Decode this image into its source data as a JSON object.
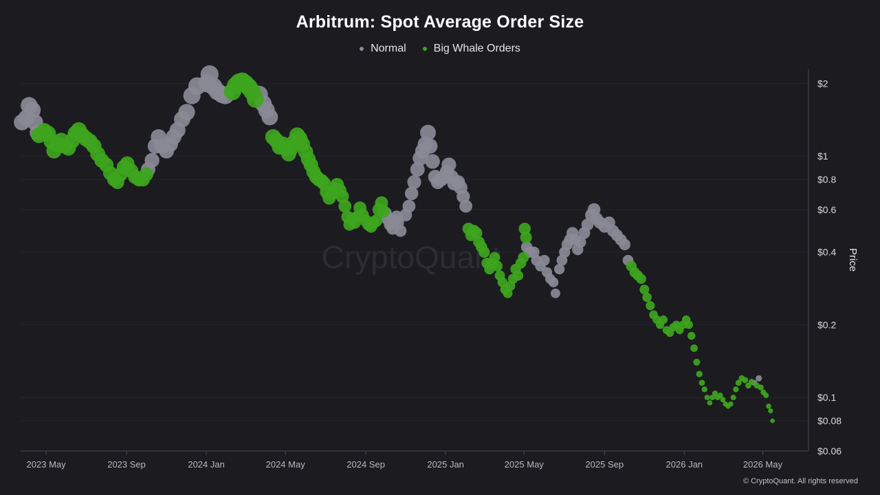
{
  "chart_data": {
    "type": "scatter",
    "title": "Arbitrum: Spot Average Order Size",
    "ylabel": "Price",
    "y_scale": "log",
    "ylim": [
      0.06,
      2.3
    ],
    "y_ticks": [
      {
        "value": 2,
        "label": "$2"
      },
      {
        "value": 1,
        "label": "$1"
      },
      {
        "value": 0.8,
        "label": "$0.8"
      },
      {
        "value": 0.6,
        "label": "$0.6"
      },
      {
        "value": 0.4,
        "label": "$0.4"
      },
      {
        "value": 0.2,
        "label": "$0.2"
      },
      {
        "value": 0.1,
        "label": "$0.1"
      },
      {
        "value": 0.08,
        "label": "$0.08"
      },
      {
        "value": 0.06,
        "label": "$0.06"
      }
    ],
    "xlim": [
      "2023-03-23",
      "2026-07-10"
    ],
    "x_ticks": [
      {
        "date": "2023-05-01",
        "label": "2023 May"
      },
      {
        "date": "2023-09-01",
        "label": "2023 Sep"
      },
      {
        "date": "2024-01-01",
        "label": "2024 Jan"
      },
      {
        "date": "2024-05-01",
        "label": "2024 May"
      },
      {
        "date": "2024-09-01",
        "label": "2024 Sep"
      },
      {
        "date": "2025-01-01",
        "label": "2025 Jan"
      },
      {
        "date": "2025-05-01",
        "label": "2025 May"
      },
      {
        "date": "2025-09-01",
        "label": "2025 Sep"
      },
      {
        "date": "2026-01-01",
        "label": "2026 Jan"
      },
      {
        "date": "2026-05-01",
        "label": "2026 May"
      }
    ],
    "legend_position": "top-center",
    "series": [
      {
        "name": "Normal",
        "color": "#8a8a97",
        "points": [
          [
            "2023-03-25",
            1.38
          ],
          [
            "2023-04-01",
            1.44
          ],
          [
            "2023-04-05",
            1.62
          ],
          [
            "2023-04-10",
            1.55
          ],
          [
            "2023-04-14",
            1.38
          ],
          [
            "2023-04-18",
            1.25
          ],
          [
            "2023-10-04",
            0.88
          ],
          [
            "2023-10-10",
            0.96
          ],
          [
            "2023-10-15",
            1.1
          ],
          [
            "2023-10-20",
            1.2
          ],
          [
            "2023-10-25",
            1.1
          ],
          [
            "2023-11-01",
            1.05
          ],
          [
            "2023-11-07",
            1.12
          ],
          [
            "2023-11-12",
            1.2
          ],
          [
            "2023-11-18",
            1.28
          ],
          [
            "2023-11-25",
            1.42
          ],
          [
            "2023-12-02",
            1.52
          ],
          [
            "2023-12-10",
            1.78
          ],
          [
            "2023-12-18",
            1.95
          ],
          [
            "2024-01-02",
            2.0
          ],
          [
            "2024-01-06",
            2.18
          ],
          [
            "2024-01-12",
            1.94
          ],
          [
            "2024-01-18",
            1.85
          ],
          [
            "2024-01-25",
            1.8
          ],
          [
            "2024-01-30",
            1.78
          ],
          [
            "2024-03-22",
            1.8
          ],
          [
            "2024-03-28",
            1.65
          ],
          [
            "2024-04-02",
            1.55
          ],
          [
            "2024-04-07",
            1.45
          ],
          [
            "2024-10-01",
            0.58
          ],
          [
            "2024-10-04",
            0.55
          ],
          [
            "2024-10-08",
            0.52
          ],
          [
            "2024-10-12",
            0.5
          ],
          [
            "2024-10-15",
            0.54
          ],
          [
            "2024-10-18",
            0.56
          ],
          [
            "2024-10-20",
            0.53
          ],
          [
            "2024-10-24",
            0.49
          ],
          [
            "2024-11-01",
            0.57
          ],
          [
            "2024-11-06",
            0.62
          ],
          [
            "2024-11-10",
            0.7
          ],
          [
            "2024-11-14",
            0.78
          ],
          [
            "2024-11-19",
            0.88
          ],
          [
            "2024-11-23",
            0.98
          ],
          [
            "2024-11-27",
            1.05
          ],
          [
            "2024-12-01",
            1.12
          ],
          [
            "2024-12-05",
            1.25
          ],
          [
            "2024-12-08",
            1.1
          ],
          [
            "2024-12-12",
            0.95
          ],
          [
            "2024-12-16",
            0.82
          ],
          [
            "2024-12-20",
            0.78
          ],
          [
            "2024-12-25",
            0.8
          ],
          [
            "2024-12-30",
            0.82
          ],
          [
            "2025-01-03",
            0.86
          ],
          [
            "2025-01-06",
            0.92
          ],
          [
            "2025-01-10",
            0.82
          ],
          [
            "2025-01-14",
            0.77
          ],
          [
            "2025-01-20",
            0.78
          ],
          [
            "2025-01-24",
            0.74
          ],
          [
            "2025-01-28",
            0.68
          ],
          [
            "2025-02-01",
            0.62
          ],
          [
            "2025-05-05",
            0.42
          ],
          [
            "2025-05-10",
            0.4
          ],
          [
            "2025-05-16",
            0.4
          ],
          [
            "2025-05-20",
            0.37
          ],
          [
            "2025-05-26",
            0.35
          ],
          [
            "2025-06-01",
            0.37
          ],
          [
            "2025-06-05",
            0.33
          ],
          [
            "2025-06-10",
            0.31
          ],
          [
            "2025-06-15",
            0.3
          ],
          [
            "2025-06-18",
            0.27
          ],
          [
            "2025-06-24",
            0.34
          ],
          [
            "2025-06-28",
            0.37
          ],
          [
            "2025-07-02",
            0.4
          ],
          [
            "2025-07-06",
            0.43
          ],
          [
            "2025-07-10",
            0.45
          ],
          [
            "2025-07-14",
            0.48
          ],
          [
            "2025-07-18",
            0.45
          ],
          [
            "2025-07-22",
            0.41
          ],
          [
            "2025-07-26",
            0.44
          ],
          [
            "2025-08-01",
            0.48
          ],
          [
            "2025-08-06",
            0.52
          ],
          [
            "2025-08-12",
            0.57
          ],
          [
            "2025-08-16",
            0.6
          ],
          [
            "2025-08-20",
            0.55
          ],
          [
            "2025-08-25",
            0.53
          ],
          [
            "2025-09-01",
            0.51
          ],
          [
            "2025-09-08",
            0.53
          ],
          [
            "2025-09-14",
            0.49
          ],
          [
            "2025-09-20",
            0.47
          ],
          [
            "2025-09-26",
            0.45
          ],
          [
            "2025-10-02",
            0.43
          ],
          [
            "2025-10-07",
            0.37
          ],
          [
            "2026-04-18",
            0.115
          ],
          [
            "2026-04-25",
            0.12
          ]
        ]
      },
      {
        "name": "Big Whale Orders",
        "color": "#3ea51e",
        "points": [
          [
            "2023-04-20",
            1.22
          ],
          [
            "2023-04-28",
            1.27
          ],
          [
            "2023-05-04",
            1.24
          ],
          [
            "2023-05-09",
            1.15
          ],
          [
            "2023-05-13",
            1.05
          ],
          [
            "2023-05-18",
            1.12
          ],
          [
            "2023-05-24",
            1.16
          ],
          [
            "2023-05-30",
            1.1
          ],
          [
            "2023-06-04",
            1.08
          ],
          [
            "2023-06-10",
            1.16
          ],
          [
            "2023-06-15",
            1.24
          ],
          [
            "2023-06-20",
            1.28
          ],
          [
            "2023-06-25",
            1.22
          ],
          [
            "2023-07-01",
            1.18
          ],
          [
            "2023-07-07",
            1.15
          ],
          [
            "2023-07-13",
            1.1
          ],
          [
            "2023-07-19",
            1.02
          ],
          [
            "2023-07-25",
            0.96
          ],
          [
            "2023-08-01",
            0.92
          ],
          [
            "2023-08-07",
            0.85
          ],
          [
            "2023-08-13",
            0.8
          ],
          [
            "2023-08-18",
            0.78
          ],
          [
            "2023-08-23",
            0.84
          ],
          [
            "2023-08-28",
            0.9
          ],
          [
            "2023-09-02",
            0.93
          ],
          [
            "2023-09-08",
            0.87
          ],
          [
            "2023-09-14",
            0.82
          ],
          [
            "2023-09-20",
            0.8
          ],
          [
            "2023-09-26",
            0.8
          ],
          [
            "2023-10-01",
            0.84
          ],
          [
            "2024-02-10",
            1.85
          ],
          [
            "2024-02-15",
            1.96
          ],
          [
            "2024-02-20",
            2.02
          ],
          [
            "2024-02-25",
            2.04
          ],
          [
            "2024-03-01",
            1.99
          ],
          [
            "2024-03-06",
            1.93
          ],
          [
            "2024-03-11",
            1.85
          ],
          [
            "2024-03-16",
            1.72
          ],
          [
            "2024-04-12",
            1.2
          ],
          [
            "2024-04-17",
            1.16
          ],
          [
            "2024-04-22",
            1.09
          ],
          [
            "2024-04-27",
            1.12
          ],
          [
            "2024-05-02",
            1.07
          ],
          [
            "2024-05-06",
            1.02
          ],
          [
            "2024-05-10",
            1.08
          ],
          [
            "2024-05-14",
            1.14
          ],
          [
            "2024-05-19",
            1.22
          ],
          [
            "2024-05-23",
            1.18
          ],
          [
            "2024-05-27",
            1.12
          ],
          [
            "2024-06-01",
            1.04
          ],
          [
            "2024-06-05",
            0.97
          ],
          [
            "2024-06-09",
            0.92
          ],
          [
            "2024-06-13",
            0.86
          ],
          [
            "2024-06-17",
            0.82
          ],
          [
            "2024-06-21",
            0.8
          ],
          [
            "2024-06-25",
            0.79
          ],
          [
            "2024-06-29",
            0.77
          ],
          [
            "2024-07-03",
            0.71
          ],
          [
            "2024-07-07",
            0.67
          ],
          [
            "2024-07-11",
            0.7
          ],
          [
            "2024-07-15",
            0.73
          ],
          [
            "2024-07-19",
            0.76
          ],
          [
            "2024-07-23",
            0.72
          ],
          [
            "2024-07-27",
            0.68
          ],
          [
            "2024-07-31",
            0.62
          ],
          [
            "2024-08-04",
            0.56
          ],
          [
            "2024-08-07",
            0.52
          ],
          [
            "2024-08-11",
            0.55
          ],
          [
            "2024-08-15",
            0.53
          ],
          [
            "2024-08-19",
            0.56
          ],
          [
            "2024-08-23",
            0.61
          ],
          [
            "2024-08-27",
            0.57
          ],
          [
            "2024-09-01",
            0.54
          ],
          [
            "2024-09-05",
            0.52
          ],
          [
            "2024-09-09",
            0.51
          ],
          [
            "2024-09-13",
            0.53
          ],
          [
            "2024-09-17",
            0.54
          ],
          [
            "2024-09-21",
            0.6
          ],
          [
            "2024-09-25",
            0.64
          ],
          [
            "2024-09-28",
            0.59
          ],
          [
            "2025-02-05",
            0.5
          ],
          [
            "2025-02-09",
            0.47
          ],
          [
            "2025-02-13",
            0.49
          ],
          [
            "2025-02-17",
            0.48
          ],
          [
            "2025-02-21",
            0.44
          ],
          [
            "2025-02-25",
            0.42
          ],
          [
            "2025-03-01",
            0.4
          ],
          [
            "2025-03-05",
            0.36
          ],
          [
            "2025-03-09",
            0.34
          ],
          [
            "2025-03-13",
            0.36
          ],
          [
            "2025-03-17",
            0.38
          ],
          [
            "2025-03-21",
            0.35
          ],
          [
            "2025-03-25",
            0.32
          ],
          [
            "2025-03-29",
            0.3
          ],
          [
            "2025-04-02",
            0.28
          ],
          [
            "2025-04-06",
            0.27
          ],
          [
            "2025-04-10",
            0.29
          ],
          [
            "2025-04-14",
            0.31
          ],
          [
            "2025-04-18",
            0.34
          ],
          [
            "2025-04-22",
            0.32
          ],
          [
            "2025-04-26",
            0.36
          ],
          [
            "2025-04-30",
            0.38
          ],
          [
            "2025-05-02",
            0.5
          ],
          [
            "2025-05-04",
            0.46
          ],
          [
            "2025-10-12",
            0.35
          ],
          [
            "2025-10-17",
            0.33
          ],
          [
            "2025-10-22",
            0.32
          ],
          [
            "2025-10-27",
            0.31
          ],
          [
            "2025-11-01",
            0.28
          ],
          [
            "2025-11-05",
            0.26
          ],
          [
            "2025-11-10",
            0.24
          ],
          [
            "2025-11-15",
            0.22
          ],
          [
            "2025-11-20",
            0.21
          ],
          [
            "2025-11-25",
            0.2
          ],
          [
            "2025-11-30",
            0.21
          ],
          [
            "2025-12-05",
            0.19
          ],
          [
            "2025-12-10",
            0.185
          ],
          [
            "2025-12-15",
            0.195
          ],
          [
            "2025-12-20",
            0.2
          ],
          [
            "2025-12-25",
            0.19
          ],
          [
            "2025-12-30",
            0.2
          ],
          [
            "2026-01-04",
            0.21
          ],
          [
            "2026-01-08",
            0.2
          ],
          [
            "2026-01-12",
            0.18
          ],
          [
            "2026-01-16",
            0.16
          ],
          [
            "2026-01-20",
            0.14
          ],
          [
            "2026-01-24",
            0.125
          ],
          [
            "2026-01-28",
            0.115
          ],
          [
            "2026-02-01",
            0.108
          ],
          [
            "2026-02-05",
            0.1
          ],
          [
            "2026-02-09",
            0.095
          ],
          [
            "2026-02-13",
            0.1
          ],
          [
            "2026-02-17",
            0.104
          ],
          [
            "2026-02-21",
            0.1
          ],
          [
            "2026-02-25",
            0.102
          ],
          [
            "2026-03-01",
            0.098
          ],
          [
            "2026-03-05",
            0.094
          ],
          [
            "2026-03-09",
            0.092
          ],
          [
            "2026-03-13",
            0.094
          ],
          [
            "2026-03-17",
            0.1
          ],
          [
            "2026-03-21",
            0.108
          ],
          [
            "2026-03-25",
            0.115
          ],
          [
            "2026-03-30",
            0.12
          ],
          [
            "2026-04-04",
            0.118
          ],
          [
            "2026-04-09",
            0.112
          ],
          [
            "2026-04-14",
            0.116
          ],
          [
            "2026-04-22",
            0.112
          ],
          [
            "2026-04-28",
            0.11
          ],
          [
            "2026-05-02",
            0.105
          ],
          [
            "2026-05-06",
            0.102
          ],
          [
            "2026-05-10",
            0.092
          ],
          [
            "2026-05-13",
            0.088
          ],
          [
            "2026-05-16",
            0.08
          ]
        ]
      }
    ]
  },
  "legend": {
    "normal_label": "Normal",
    "normal_color": "#8a8a97",
    "whale_label": "Big Whale Orders",
    "whale_color": "#3ea51e"
  },
  "watermark": "CryptoQuant",
  "copyright": "© CryptoQuant. All rights reserved"
}
